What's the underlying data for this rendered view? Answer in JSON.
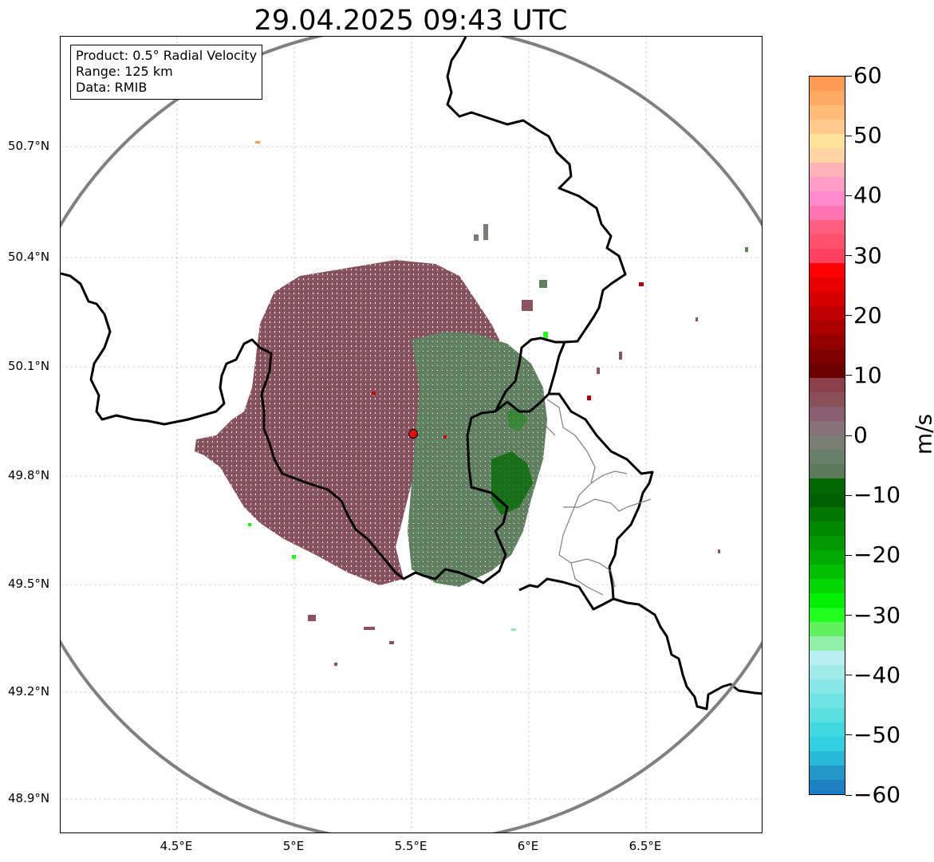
{
  "title": "29.04.2025 09:43 UTC",
  "info": {
    "product": "Product: 0.5° Radial Velocity",
    "range": "Range: 125 km",
    "source": "Data: RMIB"
  },
  "lat_labels": [
    "50.7°N",
    "50.4°N",
    "50.1°N",
    "49.8°N",
    "49.5°N",
    "49.2°N",
    "48.9°N"
  ],
  "lon_labels": [
    "4.5°E",
    "5°E",
    "5.5°E",
    "6°E",
    "6.5°E"
  ],
  "colorbar": {
    "unit": "m/s",
    "ticks": [
      "60",
      "50",
      "40",
      "30",
      "20",
      "10",
      "0",
      "−10",
      "−20",
      "−30",
      "−40",
      "−50",
      "−60"
    ],
    "colors_top_to_bottom": [
      "#ff9a55",
      "#ffab65",
      "#ffbc78",
      "#ffc98a",
      "#ffe39b",
      "#ffd4a5",
      "#ffb3b8",
      "#ff9cc8",
      "#ff8acb",
      "#ff74b0",
      "#ff5e80",
      "#ff5070",
      "#ff4060",
      "#ff0000",
      "#e80000",
      "#d40000",
      "#c00000",
      "#aa0000",
      "#940000",
      "#7e0000",
      "#6a0000",
      "#8a4048",
      "#8a5058",
      "#8a6070",
      "#887078",
      "#7a7e72",
      "#66806a",
      "#5a7a5a",
      "#006a00",
      "#006000",
      "#007800",
      "#008800",
      "#009a00",
      "#00aa00",
      "#00c000",
      "#00d800",
      "#00ee00",
      "#20ff20",
      "#60f060",
      "#90f0a8",
      "#b8f0f0",
      "#a0eaea",
      "#88e8e8",
      "#70e4e4",
      "#58e0e0",
      "#40d8e0",
      "#30d0e0",
      "#28b8d8",
      "#2098c8",
      "#1e7ec4"
    ]
  },
  "colors": {
    "range_ring": "#808080",
    "border": "#000000",
    "admin": "#808080",
    "outbound_echo": "#8a5560",
    "inbound_echo": "#5f7f5f",
    "radar_site": "#e01010"
  }
}
